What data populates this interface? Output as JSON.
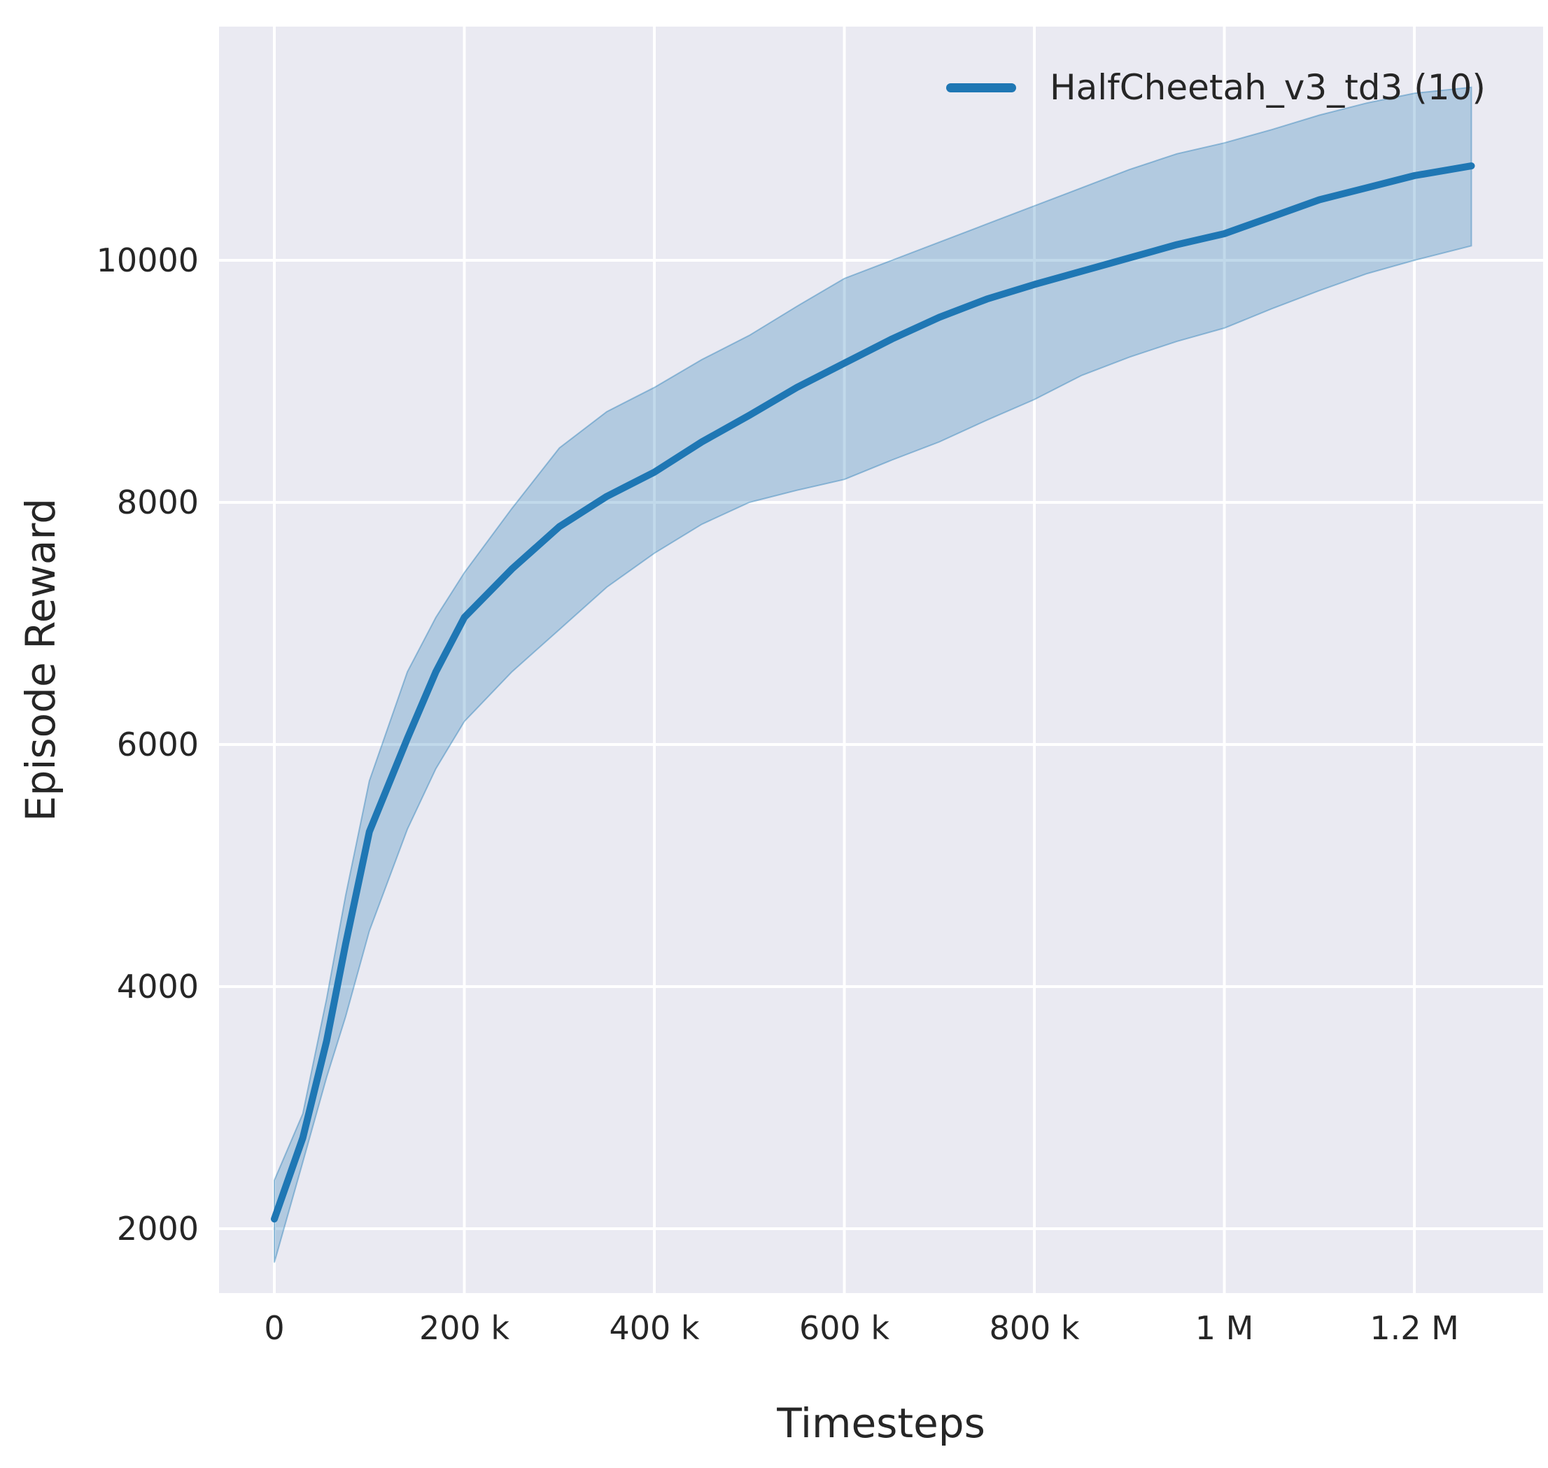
{
  "chart_data": {
    "type": "line",
    "title": "",
    "xlabel": "Timesteps",
    "ylabel": "Episode Reward",
    "grid": true,
    "grid_color": "#ffffff",
    "background_color": "#eaeaf2",
    "text_color": "#262626",
    "legend": {
      "position": "upper right",
      "entries": [
        {
          "label": "HalfCheetah_v3_td3 (10)",
          "color": "#1f77b4"
        }
      ]
    },
    "xlim": [
      -58200,
      1335500
    ],
    "ylim": [
      1468,
      11931
    ],
    "x_ticks": [
      {
        "value": 0,
        "label": "0"
      },
      {
        "value": 200000,
        "label": "200 k"
      },
      {
        "value": 400000,
        "label": "400 k"
      },
      {
        "value": 600000,
        "label": "600 k"
      },
      {
        "value": 800000,
        "label": "800 k"
      },
      {
        "value": 1000000,
        "label": "1 M"
      },
      {
        "value": 1200000,
        "label": "1.2 M"
      }
    ],
    "y_ticks": [
      {
        "value": 2000,
        "label": "2000"
      },
      {
        "value": 4000,
        "label": "4000"
      },
      {
        "value": 6000,
        "label": "6000"
      },
      {
        "value": 8000,
        "label": "8000"
      },
      {
        "value": 10000,
        "label": "10000"
      }
    ],
    "series": [
      {
        "name": "HalfCheetah_v3_td3",
        "num_runs": 10,
        "color": "#1f77b4",
        "band_fill_opacity": 0.28,
        "x": [
          0,
          30000,
          55000,
          75000,
          100000,
          140000,
          170000,
          200000,
          250000,
          300000,
          350000,
          400000,
          450000,
          500000,
          550000,
          600000,
          650000,
          700000,
          750000,
          800000,
          850000,
          900000,
          950000,
          1000000,
          1050000,
          1100000,
          1150000,
          1200000,
          1260000
        ],
        "mean": [
          2080,
          2750,
          3550,
          4350,
          5280,
          6050,
          6600,
          7050,
          7450,
          7800,
          8050,
          8250,
          8500,
          8720,
          8950,
          9150,
          9350,
          9530,
          9680,
          9800,
          9910,
          10020,
          10130,
          10220,
          10360,
          10500,
          10600,
          10700,
          10780
        ],
        "lower": [
          1720,
          2550,
          3250,
          3750,
          4460,
          5300,
          5800,
          6190,
          6600,
          6950,
          7300,
          7580,
          7820,
          8000,
          8100,
          8190,
          8350,
          8500,
          8680,
          8850,
          9050,
          9200,
          9330,
          9440,
          9600,
          9750,
          9890,
          10000,
          10120
        ],
        "upper": [
          2400,
          2950,
          3900,
          4750,
          5700,
          6600,
          7050,
          7420,
          7950,
          8450,
          8750,
          8950,
          9180,
          9380,
          9620,
          9850,
          10000,
          10150,
          10300,
          10450,
          10600,
          10750,
          10880,
          10970,
          11080,
          11200,
          11300,
          11380,
          11430
        ]
      }
    ]
  }
}
